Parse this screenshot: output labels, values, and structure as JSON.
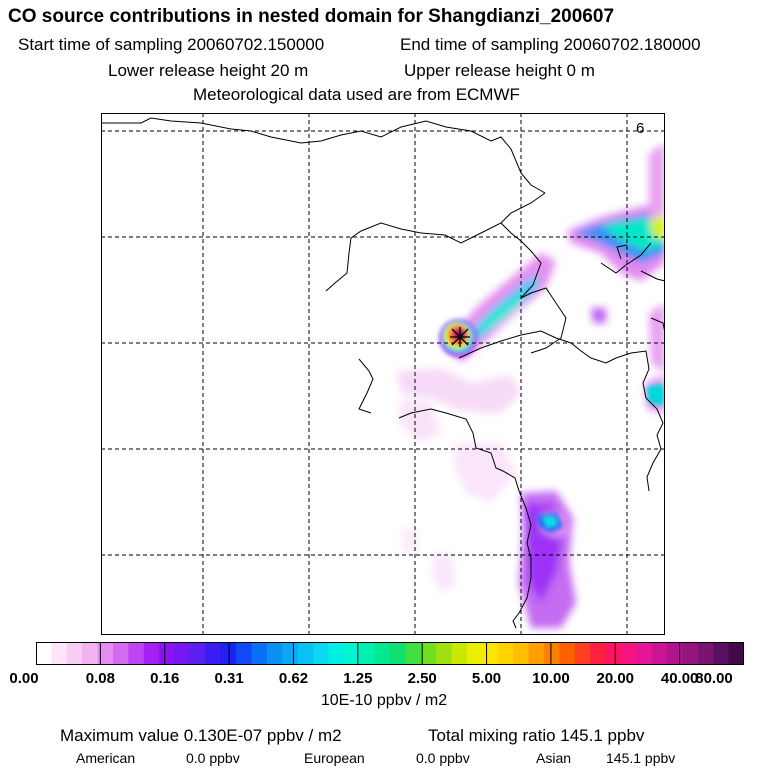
{
  "title": "CO  source contributions in nested domain for Shangdianzi_200607",
  "sampling": {
    "start": "Start time of sampling 20060702.150000",
    "end": "End time of sampling 20060702.180000"
  },
  "release": {
    "lower": "Lower release height   20 m",
    "upper": "Upper release height    0 m"
  },
  "met": "Meteorological data used are from ECMWF",
  "colorbar": {
    "ticks": [
      "0.00",
      "0.08",
      "0.16",
      "0.31",
      "0.62",
      "1.25",
      "2.50",
      "5.00",
      "10.00",
      "20.00",
      "40.00",
      "80.00"
    ],
    "unit": "10E-10 ppbv / m2",
    "colors": [
      "#ffffff",
      "#fde6fb",
      "#f7cdf6",
      "#f1b2f2",
      "#e58cf0",
      "#d26af2",
      "#bd45f4",
      "#a520f5",
      "#8a14f6",
      "#7418f2",
      "#5a20f0",
      "#3a1cf5",
      "#1f22f5",
      "#1248f5",
      "#0a70f5",
      "#0a8ff5",
      "#0aa8f5",
      "#0ac0f5",
      "#0ad8f0",
      "#00f0e6",
      "#00f5d0",
      "#00f0b0",
      "#00e890",
      "#10e070",
      "#40e040",
      "#70e020",
      "#9ee010",
      "#c8e800",
      "#e8f000",
      "#fae600",
      "#ffd200",
      "#ffbe00",
      "#ffa000",
      "#ff8000",
      "#ff6000",
      "#ff4020",
      "#ff2040",
      "#ff1464",
      "#f51480",
      "#e61496",
      "#cc1496",
      "#b01490",
      "#961480",
      "#7a1470",
      "#5a1060",
      "#400a48"
    ]
  },
  "summary": {
    "max_value": "Maximum value  0.130E-07 ppbv / m2",
    "total_mixing": "Total mixing ratio      145.1 ppbv",
    "american_label": "American",
    "american_value": "0.0 ppbv",
    "european_label": "European",
    "european_value": "0.0 ppbv",
    "asian_label": "Asian",
    "asian_value": "145.1 ppbv"
  },
  "map_labels": {
    "corner_digit": "6"
  }
}
